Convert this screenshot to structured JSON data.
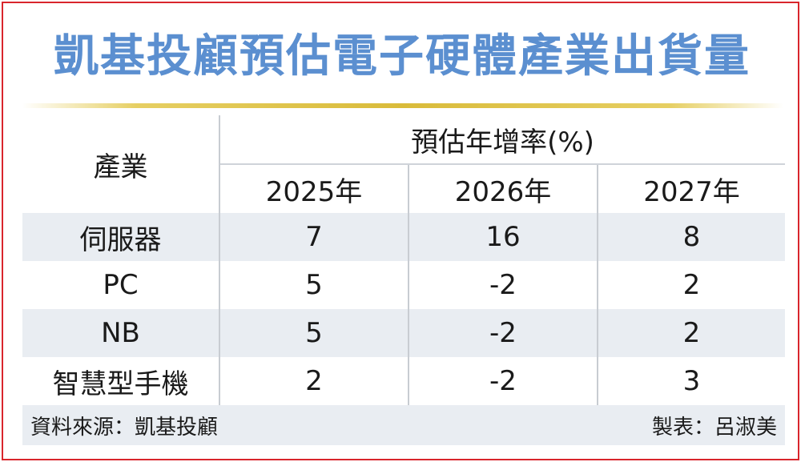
{
  "title": "凱基投顧預估電子硬體產業出貨量",
  "table": {
    "industry_header": "產業",
    "group_header": "預估年增率(%)",
    "years": [
      "2025年",
      "2026年",
      "2027年"
    ],
    "rows": [
      {
        "industry": "伺服器",
        "values": [
          "7",
          "16",
          "8"
        ]
      },
      {
        "industry": "PC",
        "values": [
          "5",
          "-2",
          "2"
        ]
      },
      {
        "industry": "NB",
        "values": [
          "5",
          "-2",
          "2"
        ]
      },
      {
        "industry": "智慧型手機",
        "values": [
          "2",
          "-2",
          "3"
        ]
      }
    ]
  },
  "footer": {
    "source": "資料來源：凱基投顧",
    "credit": "製表：呂淑美"
  },
  "colors": {
    "title": "#5b8fd0",
    "border": "#d9262c",
    "row_shade": "#e9edf2",
    "rule": "#d9bb3a"
  }
}
